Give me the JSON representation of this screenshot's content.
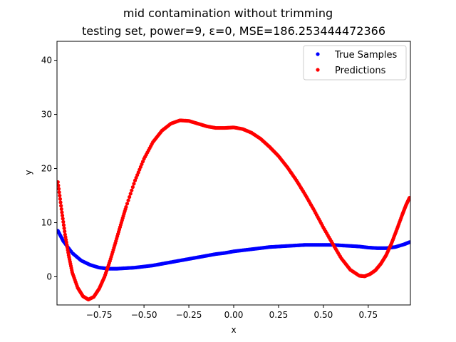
{
  "figure": {
    "title": "mid contamination without trimming",
    "subtitle": "testing set, power=9, ε=0, MSE=186.253444472366"
  },
  "chart_data": {
    "type": "scatter",
    "title": "mid contamination without trimming",
    "subtitle": "testing set, power=9, ε=0, MSE=186.253444472366",
    "xlabel": "x",
    "ylabel": "y",
    "xlim": [
      -0.985,
      0.985
    ],
    "ylim": [
      -5.2,
      43.5
    ],
    "x_ticks": [
      -0.75,
      -0.5,
      -0.25,
      0.0,
      0.25,
      0.5,
      0.75
    ],
    "x_tick_labels": [
      "−0.75",
      "−0.50",
      "−0.25",
      "0.00",
      "0.25",
      "0.50",
      "0.75"
    ],
    "y_ticks": [
      0,
      10,
      20,
      30,
      40
    ],
    "y_tick_labels": [
      "0",
      "10",
      "20",
      "30",
      "40"
    ],
    "grid": false,
    "legend_position": "top-right",
    "series": [
      {
        "name": "True Samples",
        "color": "#0000ff",
        "x": [
          -0.98,
          -0.95,
          -0.9,
          -0.85,
          -0.8,
          -0.75,
          -0.7,
          -0.65,
          -0.6,
          -0.55,
          -0.5,
          -0.45,
          -0.4,
          -0.35,
          -0.3,
          -0.25,
          -0.2,
          -0.15,
          -0.1,
          -0.05,
          0.0,
          0.05,
          0.1,
          0.15,
          0.2,
          0.25,
          0.3,
          0.35,
          0.4,
          0.45,
          0.5,
          0.55,
          0.6,
          0.65,
          0.7,
          0.75,
          0.8,
          0.85,
          0.9,
          0.95,
          0.98
        ],
        "y": [
          8.5,
          6.6,
          4.4,
          3.0,
          2.2,
          1.7,
          1.5,
          1.5,
          1.6,
          1.7,
          1.9,
          2.1,
          2.4,
          2.7,
          3.0,
          3.3,
          3.6,
          3.9,
          4.2,
          4.4,
          4.7,
          4.9,
          5.1,
          5.3,
          5.5,
          5.6,
          5.7,
          5.8,
          5.9,
          5.9,
          5.9,
          5.9,
          5.8,
          5.7,
          5.6,
          5.4,
          5.3,
          5.3,
          5.5,
          6.0,
          6.4
        ]
      },
      {
        "name": "Predictions",
        "color": "#ff0000",
        "x": [
          -0.98,
          -0.96,
          -0.94,
          -0.92,
          -0.9,
          -0.87,
          -0.84,
          -0.81,
          -0.78,
          -0.75,
          -0.72,
          -0.69,
          -0.66,
          -0.63,
          -0.6,
          -0.55,
          -0.5,
          -0.45,
          -0.4,
          -0.35,
          -0.3,
          -0.25,
          -0.2,
          -0.15,
          -0.1,
          -0.05,
          0.0,
          0.05,
          0.1,
          0.15,
          0.2,
          0.25,
          0.3,
          0.35,
          0.4,
          0.45,
          0.5,
          0.55,
          0.6,
          0.65,
          0.7,
          0.73,
          0.76,
          0.79,
          0.82,
          0.85,
          0.88,
          0.91,
          0.94,
          0.96,
          0.98
        ],
        "y": [
          17.5,
          12.5,
          7.8,
          4.0,
          0.8,
          -2.0,
          -3.6,
          -4.2,
          -3.7,
          -2.2,
          0.0,
          2.9,
          6.2,
          9.6,
          12.9,
          17.8,
          21.8,
          24.9,
          27.0,
          28.3,
          28.9,
          28.8,
          28.3,
          27.8,
          27.5,
          27.5,
          27.6,
          27.3,
          26.6,
          25.5,
          24.0,
          22.3,
          20.2,
          17.8,
          15.1,
          12.2,
          9.1,
          6.2,
          3.4,
          1.3,
          0.2,
          0.1,
          0.5,
          1.2,
          2.4,
          4.0,
          6.2,
          8.8,
          11.5,
          13.2,
          14.6
        ]
      }
    ]
  }
}
